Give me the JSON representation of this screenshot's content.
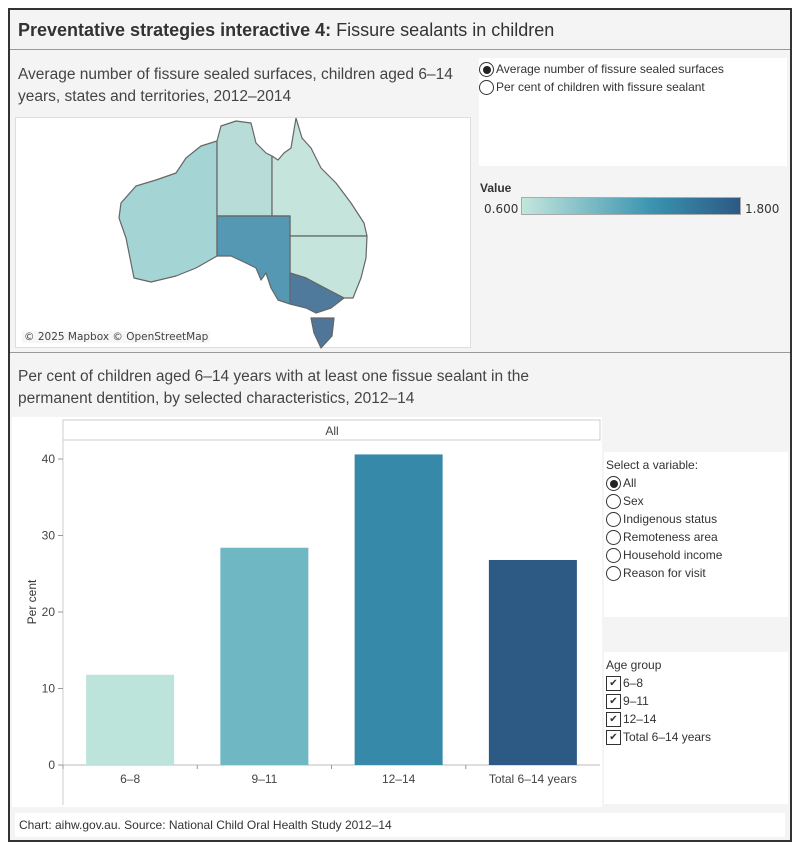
{
  "header": {
    "title_bold": "Preventative strategies interactive 4:",
    "title_rest": " Fissure sealants in children"
  },
  "map_section": {
    "heading": "Average number of fissure sealed surfaces, children aged 6–14 years, states and territories, 2012–2014",
    "credit": "© 2025 Mapbox © OpenStreetMap",
    "measure_options": [
      {
        "label": "Average number of fissure sealed surfaces",
        "selected": true
      },
      {
        "label": "Per cent of children with fissure sealant",
        "selected": false
      }
    ],
    "legend": {
      "title": "Value",
      "min": "0.600",
      "max": "1.800",
      "color_low": "#c3e6dc",
      "color_mid": "#3a93b0",
      "color_high": "#2c5985"
    },
    "state_colors": {
      "WA": "#a5d4d4",
      "NT": "#b8ddd9",
      "QLD": "#c5e4dc",
      "NSW": "#c5e4dc",
      "SA": "#5598b4",
      "VIC": "#4f7a9c",
      "TAS": "#4f7599"
    }
  },
  "chart_section": {
    "heading": "Per cent of children aged 6–14 years with at least one fissue sealant in the permanent dentition, by selected characteristics, 2012–14"
  },
  "chart_data": {
    "type": "bar",
    "panel_label": "All",
    "categories": [
      "6–8",
      "9–11",
      "12–14",
      "Total 6–14 years"
    ],
    "values": [
      11.8,
      28.4,
      40.6,
      26.8
    ],
    "colors": [
      "#bde4da",
      "#70b7c4",
      "#3689a9",
      "#2d5985"
    ],
    "ylabel": "Per cent",
    "xlabel": "",
    "ylim": [
      0,
      42
    ],
    "yticks": [
      0,
      10,
      20,
      30,
      40
    ],
    "grid": false
  },
  "variable_filter": {
    "title": "Select a variable:",
    "options": [
      {
        "label": "All",
        "selected": true
      },
      {
        "label": "Sex",
        "selected": false
      },
      {
        "label": "Indigenous status",
        "selected": false
      },
      {
        "label": "Remoteness area",
        "selected": false
      },
      {
        "label": "Household income",
        "selected": false
      },
      {
        "label": "Reason for visit",
        "selected": false
      }
    ]
  },
  "age_filter": {
    "title": "Age group",
    "options": [
      {
        "label": "6–8",
        "checked": true
      },
      {
        "label": "9–11",
        "checked": true
      },
      {
        "label": "12–14",
        "checked": true
      },
      {
        "label": "Total 6–14 years",
        "checked": true
      }
    ]
  },
  "footer": {
    "source": "Chart: aihw.gov.au. Source: National Child Oral Health Study 2012–14"
  }
}
